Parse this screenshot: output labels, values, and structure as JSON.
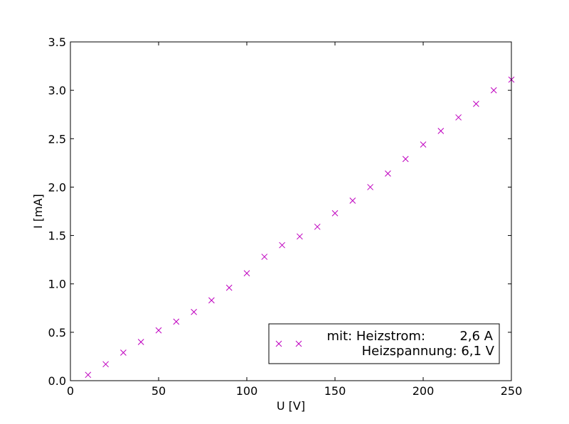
{
  "chart_data": {
    "type": "scatter",
    "title": "",
    "xlabel": "U [V]",
    "ylabel": "I [mA]",
    "xlim": [
      0,
      250
    ],
    "ylim": [
      0,
      3.5
    ],
    "xticks": [
      0,
      50,
      100,
      150,
      200,
      250
    ],
    "yticks": [
      0.0,
      0.5,
      1.0,
      1.5,
      2.0,
      2.5,
      3.0,
      3.5
    ],
    "xtick_labels": [
      "0",
      "50",
      "100",
      "150",
      "200",
      "250"
    ],
    "ytick_labels": [
      "0.0",
      "0.5",
      "1.0",
      "1.5",
      "2.0",
      "2.5",
      "3.0",
      "3.5"
    ],
    "grid": false,
    "legend_position": "bottom-right",
    "series": [
      {
        "name_line1_label": "mit: Heizstrom:",
        "name_line1_value": "2,6 A",
        "name_line2": "Heizspannung: 6,1 V",
        "marker": "x",
        "color": "#bf00bf",
        "x": [
          10,
          20,
          30,
          40,
          50,
          60,
          70,
          80,
          90,
          100,
          110,
          120,
          130,
          140,
          150,
          160,
          170,
          180,
          190,
          200,
          210,
          220,
          230,
          240,
          250
        ],
        "y": [
          0.06,
          0.17,
          0.29,
          0.4,
          0.52,
          0.61,
          0.71,
          0.83,
          0.96,
          1.11,
          1.28,
          1.4,
          1.49,
          1.59,
          1.73,
          1.86,
          2.0,
          2.14,
          2.29,
          2.44,
          2.58,
          2.72,
          2.86,
          3.0,
          3.11
        ]
      }
    ]
  }
}
